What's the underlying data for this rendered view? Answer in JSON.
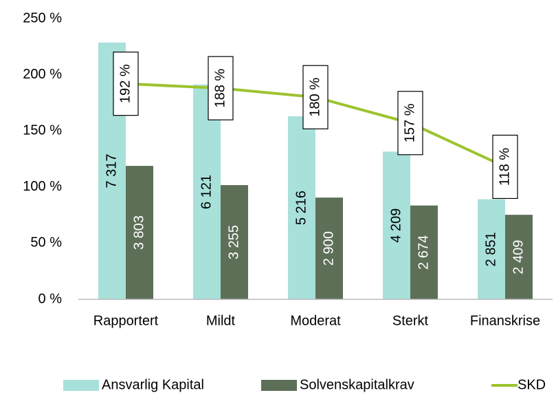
{
  "chart_data": {
    "type": "bar_line",
    "categories": [
      "Rapportert",
      "Mildt",
      "Moderat",
      "Sterkt",
      "Finanskrise"
    ],
    "series": [
      {
        "name": "Ansvarlig Kapital",
        "color": "#a8e0da",
        "type": "bar",
        "axis": "y2",
        "values": [
          7317,
          6121,
          5216,
          4209,
          2851
        ],
        "value_labels": [
          "7 317",
          "6 121",
          "5 216",
          "4 209",
          "2 851"
        ]
      },
      {
        "name": "Solvenskapitalkrav",
        "color": "#5e6f58",
        "type": "bar",
        "axis": "y2",
        "values": [
          3803,
          3255,
          2900,
          2674,
          2409
        ],
        "value_labels": [
          "3 803",
          "3 255",
          "2 900",
          "2 674",
          "2 409"
        ]
      },
      {
        "name": "SKD",
        "color": "#9dc32f",
        "type": "line",
        "values": [
          192,
          188,
          180,
          157,
          118
        ],
        "value_labels": [
          "192 %",
          "188 %",
          "180 %",
          "157 %",
          "118 %"
        ]
      }
    ],
    "ylim": [
      0,
      250
    ],
    "yticks": [
      {
        "value": 0,
        "label": "0 %"
      },
      {
        "value": 50,
        "label": "50 %"
      },
      {
        "value": 100,
        "label": "100 %"
      },
      {
        "value": 150,
        "label": "150 %"
      },
      {
        "value": 200,
        "label": "200 %"
      },
      {
        "value": 250,
        "label": "250 %"
      }
    ],
    "y2lim": [
      0,
      8000
    ],
    "legend": "bottom"
  }
}
